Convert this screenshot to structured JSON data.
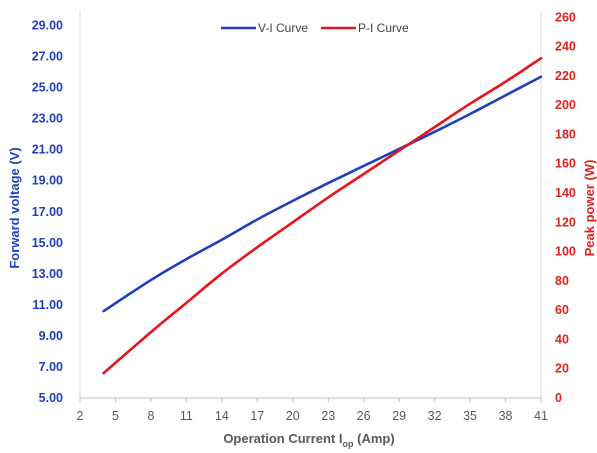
{
  "chart_data": {
    "type": "line",
    "xlabel": {
      "main": "Operation Current I",
      "sub": "op",
      "suffix": " (Amp)"
    },
    "ylabel_left": "Forward voltage (V)",
    "ylabel_right": "Peak power (W)",
    "xlim": [
      2,
      41
    ],
    "x_ticks": [
      "2",
      "5",
      "8",
      "11",
      "14",
      "17",
      "20",
      "23",
      "26",
      "29",
      "32",
      "35",
      "38",
      "41"
    ],
    "ylim_left": [
      5,
      30
    ],
    "y_ticks_left": [
      "5.00",
      "7.00",
      "9.00",
      "11.00",
      "13.00",
      "15.00",
      "17.00",
      "19.00",
      "21.00",
      "23.00",
      "25.00",
      "27.00",
      "29.00"
    ],
    "ylim_right": [
      0,
      265
    ],
    "y_ticks_right": [
      "0",
      "20",
      "40",
      "60",
      "80",
      "100",
      "120",
      "140",
      "160",
      "180",
      "200",
      "220",
      "240",
      "260"
    ],
    "grid": false,
    "legend_position": "top-center",
    "series": [
      {
        "name": "V-I Curve",
        "axis": "left",
        "color": "#1f3fbf",
        "x": [
          4,
          8,
          11,
          14,
          17,
          20,
          23,
          26,
          29,
          32,
          35,
          38,
          41
        ],
        "y": [
          10.6,
          12.6,
          13.95,
          15.2,
          16.5,
          17.7,
          18.85,
          19.95,
          21.05,
          22.15,
          23.3,
          24.5,
          25.7
        ]
      },
      {
        "name": "P-I Curve",
        "axis": "right",
        "color": "#e8141b",
        "x": [
          4,
          8,
          11,
          14,
          17,
          20,
          23,
          26,
          29,
          32,
          35,
          38,
          41
        ],
        "y": [
          17,
          45,
          65,
          85,
          103,
          120,
          137,
          153,
          169,
          185,
          201,
          216,
          232
        ]
      }
    ]
  }
}
